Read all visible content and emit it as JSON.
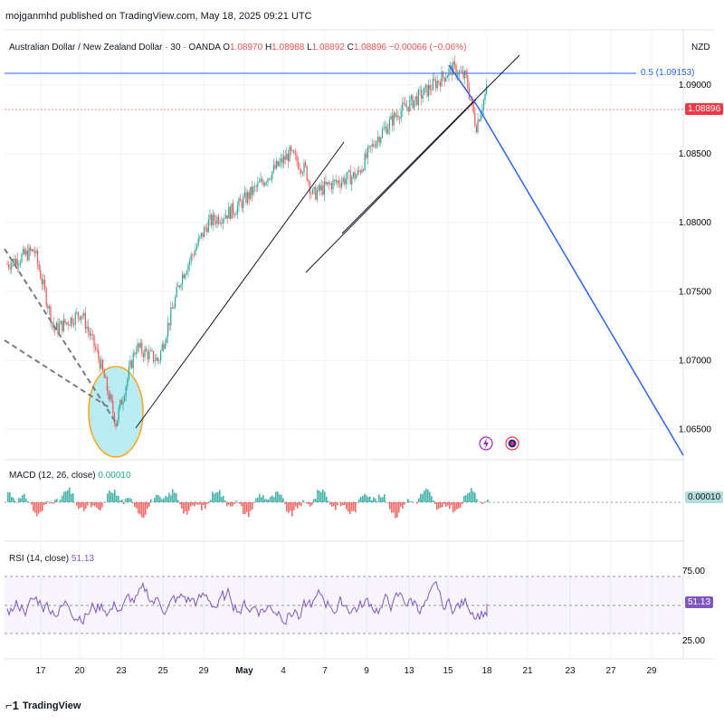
{
  "header": {
    "published": "mojganmhd published on TradingView.com, May 18, 2025 09:21 UTC"
  },
  "symbol": {
    "name": "Australian Dollar / New Zealand Dollar · 30 · OANDA",
    "open_label": "O",
    "open": "1.08970",
    "high_label": "H",
    "high": "1.08988",
    "low_label": "L",
    "low": "1.08892",
    "close_label": "C",
    "close": "1.08896",
    "change": "−0.00066 (−0.06%)",
    "currency": "NZD"
  },
  "price_axis": {
    "ticks": [
      "1.09000",
      "1.08500",
      "1.08000",
      "1.07500",
      "1.07000",
      "1.06500"
    ],
    "last_price_tag": "1.08896",
    "fib_label": "0.5 (1.09153)"
  },
  "macd": {
    "label": "MACD (12, 26, close)",
    "value": "0.00010",
    "tag": "0.00010"
  },
  "rsi": {
    "label": "RSI (14, close)",
    "value": "51.13",
    "tag": "51.13",
    "levels": [
      "75.00",
      "25.00"
    ]
  },
  "time_axis": {
    "ticks": [
      "17",
      "20",
      "23",
      "25",
      "29",
      "May",
      "4",
      "7",
      "9",
      "13",
      "15",
      "18",
      "21",
      "23",
      "27",
      "29"
    ]
  },
  "footer": {
    "brand": "TradingView"
  },
  "colors": {
    "up": "#26a69a",
    "down": "#ef5350",
    "fib_line": "#2962ff",
    "projection": "#2962ff",
    "trendline": "#131722",
    "rsi_line": "#7e57c2",
    "ellipse_fill": "#b2ebf2",
    "ellipse_stroke": "#ff9800",
    "last_price_bg": "#f23645",
    "rsi_tag_bg": "#7e57c2",
    "macd_tag_bg": "#b2dfdb"
  },
  "chart_data": {
    "type": "line",
    "title": "Australian Dollar / New Zealand Dollar · 30 · OANDA",
    "xlabel": "",
    "ylabel": "",
    "ylim": [
      1.063,
      1.094
    ],
    "x": [
      "17",
      "20",
      "23",
      "25",
      "29",
      "May",
      "4",
      "7",
      "9",
      "13",
      "15",
      "18"
    ],
    "series": [
      {
        "values": [
          1.077,
          1.072,
          1.066,
          1.072,
          1.083,
          1.085,
          1.082,
          1.084,
          1.0865,
          1.0895,
          1.091,
          1.089
        ]
      }
    ],
    "annotations": [
      {
        "type": "hline",
        "label": "0.5 (1.09153)",
        "value": 1.09153
      },
      {
        "type": "hline",
        "label": "1.08896",
        "value": 1.08896
      },
      {
        "type": "projection",
        "from": "16 May",
        "to": "29 May",
        "from_value": 1.0897,
        "to_value": 1.0633
      }
    ]
  }
}
